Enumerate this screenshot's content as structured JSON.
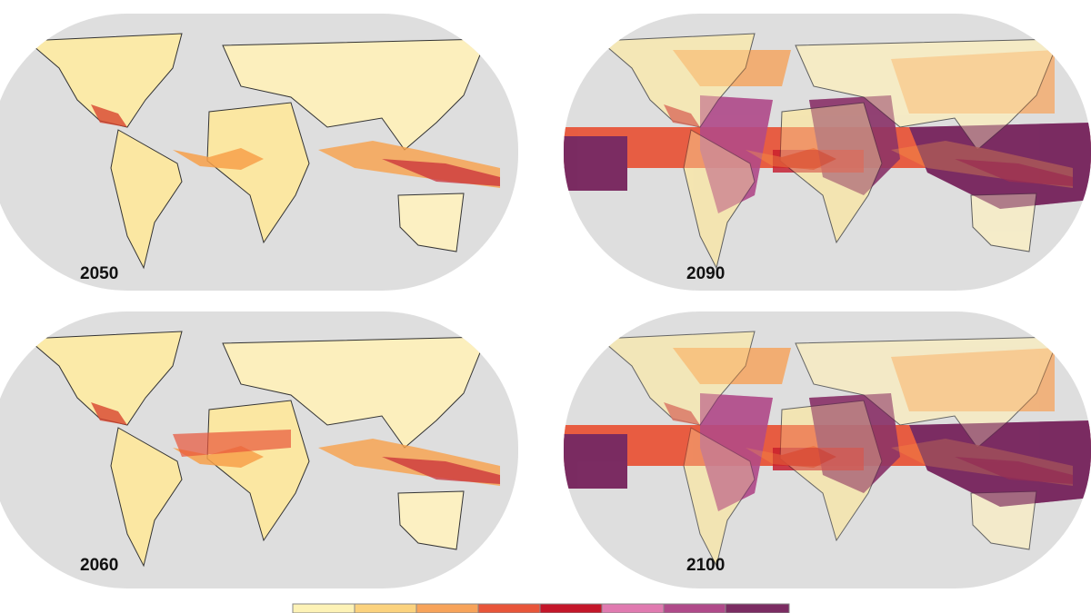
{
  "panels": [
    {
      "label": "2050"
    },
    {
      "label": "2090"
    },
    {
      "label": "2060"
    },
    {
      "label": "2100"
    }
  ]
}
